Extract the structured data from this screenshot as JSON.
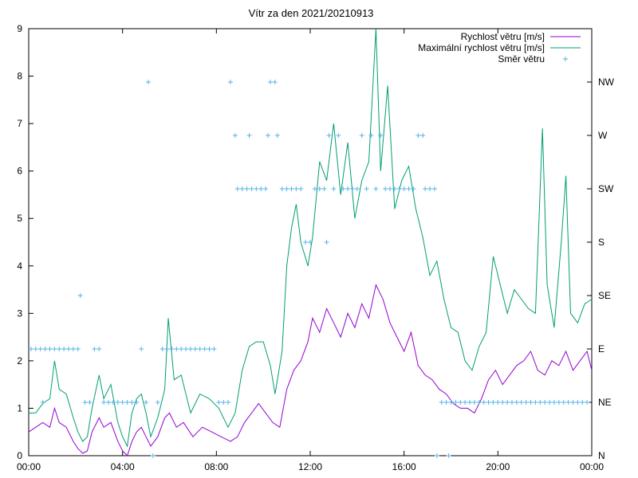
{
  "chart_data": {
    "type": "line",
    "title": "Vítr za den 2021/20210913",
    "xlabel": "",
    "ylabel": "",
    "x_unit": "hours",
    "xlim": [
      0,
      24
    ],
    "ylim": [
      0,
      9
    ],
    "x_ticks": [
      0,
      4,
      8,
      12,
      16,
      20,
      24
    ],
    "x_tick_labels": [
      "00:00",
      "04:00",
      "08:00",
      "12:00",
      "16:00",
      "20:00",
      "00:00"
    ],
    "y_ticks": [
      0,
      1,
      2,
      3,
      4,
      5,
      6,
      7,
      8,
      9
    ],
    "y_tick_labels": [
      "0",
      "1",
      "2",
      "3",
      "4",
      "5",
      "6",
      "7",
      "8",
      "9"
    ],
    "y2_ticks": [
      0,
      1.125,
      2.25,
      3.375,
      4.5,
      5.625,
      6.75,
      7.875
    ],
    "y2_tick_labels": [
      "N",
      "NE",
      "E",
      "SE",
      "S",
      "SW",
      "W",
      "NW"
    ],
    "grid": false,
    "legend_position": "top-right",
    "series": [
      {
        "name": "Rychlost větru [m/s]",
        "color": "#9400d3",
        "style": "line",
        "points": [
          [
            0,
            0.5
          ],
          [
            0.3,
            0.6
          ],
          [
            0.6,
            0.7
          ],
          [
            0.9,
            0.6
          ],
          [
            1.1,
            1.0
          ],
          [
            1.3,
            0.7
          ],
          [
            1.6,
            0.6
          ],
          [
            1.9,
            0.3
          ],
          [
            2.1,
            0.15
          ],
          [
            2.3,
            0.05
          ],
          [
            2.5,
            0.1
          ],
          [
            2.7,
            0.5
          ],
          [
            3.0,
            0.8
          ],
          [
            3.2,
            0.6
          ],
          [
            3.5,
            0.7
          ],
          [
            3.8,
            0.3
          ],
          [
            4.0,
            0.1
          ],
          [
            4.2,
            0.0
          ],
          [
            4.4,
            0.3
          ],
          [
            4.6,
            0.5
          ],
          [
            4.8,
            0.6
          ],
          [
            5.0,
            0.4
          ],
          [
            5.2,
            0.2
          ],
          [
            5.5,
            0.4
          ],
          [
            5.8,
            0.8
          ],
          [
            6.0,
            0.9
          ],
          [
            6.3,
            0.6
          ],
          [
            6.6,
            0.7
          ],
          [
            7.0,
            0.4
          ],
          [
            7.4,
            0.6
          ],
          [
            7.8,
            0.5
          ],
          [
            8.2,
            0.4
          ],
          [
            8.6,
            0.3
          ],
          [
            8.9,
            0.4
          ],
          [
            9.2,
            0.7
          ],
          [
            9.5,
            0.9
          ],
          [
            9.8,
            1.1
          ],
          [
            10.1,
            0.9
          ],
          [
            10.4,
            0.7
          ],
          [
            10.7,
            0.6
          ],
          [
            11.0,
            1.4
          ],
          [
            11.3,
            1.8
          ],
          [
            11.6,
            2.0
          ],
          [
            11.9,
            2.4
          ],
          [
            12.1,
            2.9
          ],
          [
            12.4,
            2.6
          ],
          [
            12.7,
            3.1
          ],
          [
            13.0,
            2.8
          ],
          [
            13.3,
            2.5
          ],
          [
            13.6,
            3.0
          ],
          [
            13.9,
            2.7
          ],
          [
            14.2,
            3.2
          ],
          [
            14.5,
            2.9
          ],
          [
            14.8,
            3.6
          ],
          [
            15.1,
            3.3
          ],
          [
            15.4,
            2.8
          ],
          [
            15.7,
            2.5
          ],
          [
            16.0,
            2.2
          ],
          [
            16.3,
            2.6
          ],
          [
            16.6,
            1.9
          ],
          [
            16.9,
            1.7
          ],
          [
            17.2,
            1.6
          ],
          [
            17.5,
            1.4
          ],
          [
            17.8,
            1.3
          ],
          [
            18.1,
            1.1
          ],
          [
            18.4,
            1.0
          ],
          [
            18.7,
            1.0
          ],
          [
            19.0,
            0.9
          ],
          [
            19.3,
            1.2
          ],
          [
            19.6,
            1.6
          ],
          [
            19.9,
            1.8
          ],
          [
            20.2,
            1.5
          ],
          [
            20.5,
            1.7
          ],
          [
            20.8,
            1.9
          ],
          [
            21.1,
            2.0
          ],
          [
            21.4,
            2.2
          ],
          [
            21.7,
            1.8
          ],
          [
            22.0,
            1.7
          ],
          [
            22.3,
            2.0
          ],
          [
            22.6,
            1.9
          ],
          [
            22.9,
            2.2
          ],
          [
            23.2,
            1.8
          ],
          [
            23.5,
            2.0
          ],
          [
            23.8,
            2.2
          ],
          [
            24.0,
            1.8
          ]
        ]
      },
      {
        "name": "Maximální rychlost větru [m/s]",
        "color": "#009e73",
        "style": "line",
        "points": [
          [
            0,
            0.9
          ],
          [
            0.3,
            0.9
          ],
          [
            0.6,
            1.1
          ],
          [
            0.9,
            1.2
          ],
          [
            1.1,
            2.0
          ],
          [
            1.3,
            1.4
          ],
          [
            1.6,
            1.3
          ],
          [
            1.9,
            0.8
          ],
          [
            2.1,
            0.5
          ],
          [
            2.3,
            0.3
          ],
          [
            2.5,
            0.4
          ],
          [
            2.7,
            1.0
          ],
          [
            3.0,
            1.7
          ],
          [
            3.2,
            1.2
          ],
          [
            3.5,
            1.5
          ],
          [
            3.8,
            0.7
          ],
          [
            4.0,
            0.4
          ],
          [
            4.2,
            0.2
          ],
          [
            4.4,
            0.9
          ],
          [
            4.6,
            1.2
          ],
          [
            4.8,
            1.3
          ],
          [
            5.0,
            0.9
          ],
          [
            5.2,
            0.4
          ],
          [
            5.5,
            0.8
          ],
          [
            5.8,
            1.4
          ],
          [
            5.95,
            2.9
          ],
          [
            6.2,
            1.6
          ],
          [
            6.5,
            1.7
          ],
          [
            6.9,
            0.9
          ],
          [
            7.3,
            1.3
          ],
          [
            7.7,
            1.2
          ],
          [
            8.1,
            1.0
          ],
          [
            8.5,
            0.6
          ],
          [
            8.8,
            0.9
          ],
          [
            9.1,
            1.8
          ],
          [
            9.4,
            2.3
          ],
          [
            9.7,
            2.4
          ],
          [
            10.0,
            2.4
          ],
          [
            10.3,
            1.9
          ],
          [
            10.5,
            1.3
          ],
          [
            10.8,
            2.2
          ],
          [
            11.0,
            4.0
          ],
          [
            11.2,
            4.8
          ],
          [
            11.4,
            5.3
          ],
          [
            11.6,
            4.5
          ],
          [
            11.9,
            4.0
          ],
          [
            12.1,
            4.6
          ],
          [
            12.4,
            6.2
          ],
          [
            12.7,
            5.8
          ],
          [
            13.0,
            7.0
          ],
          [
            13.3,
            5.5
          ],
          [
            13.6,
            6.6
          ],
          [
            13.9,
            5.0
          ],
          [
            14.2,
            5.8
          ],
          [
            14.5,
            6.2
          ],
          [
            14.8,
            9.0
          ],
          [
            15.0,
            6.0
          ],
          [
            15.3,
            7.8
          ],
          [
            15.6,
            5.2
          ],
          [
            15.9,
            5.8
          ],
          [
            16.2,
            6.1
          ],
          [
            16.5,
            5.2
          ],
          [
            16.8,
            4.6
          ],
          [
            17.1,
            3.8
          ],
          [
            17.4,
            4.1
          ],
          [
            17.7,
            3.3
          ],
          [
            18.0,
            2.7
          ],
          [
            18.3,
            2.6
          ],
          [
            18.6,
            2.0
          ],
          [
            18.9,
            1.8
          ],
          [
            19.2,
            2.3
          ],
          [
            19.5,
            2.6
          ],
          [
            19.8,
            4.2
          ],
          [
            20.1,
            3.6
          ],
          [
            20.4,
            3.0
          ],
          [
            20.7,
            3.5
          ],
          [
            21.0,
            3.3
          ],
          [
            21.3,
            3.1
          ],
          [
            21.6,
            3.0
          ],
          [
            21.9,
            6.9
          ],
          [
            22.1,
            3.6
          ],
          [
            22.4,
            2.7
          ],
          [
            22.7,
            4.5
          ],
          [
            22.9,
            5.9
          ],
          [
            23.1,
            3.0
          ],
          [
            23.4,
            2.8
          ],
          [
            23.7,
            3.2
          ],
          [
            24.0,
            3.3
          ]
        ]
      },
      {
        "name": "Směr větru",
        "color": "#56b4e9",
        "style": "points",
        "points": [
          [
            0.1,
            2.25
          ],
          [
            0.3,
            2.25
          ],
          [
            0.5,
            2.25
          ],
          [
            0.6,
            1.125
          ],
          [
            0.7,
            2.25
          ],
          [
            0.9,
            2.25
          ],
          [
            1.1,
            2.25
          ],
          [
            1.3,
            2.25
          ],
          [
            1.5,
            2.25
          ],
          [
            1.7,
            2.25
          ],
          [
            1.9,
            2.25
          ],
          [
            2.1,
            2.25
          ],
          [
            2.2,
            3.375
          ],
          [
            2.4,
            1.125
          ],
          [
            2.6,
            1.125
          ],
          [
            2.8,
            2.25
          ],
          [
            3.0,
            2.25
          ],
          [
            3.2,
            1.125
          ],
          [
            3.4,
            1.125
          ],
          [
            3.6,
            1.125
          ],
          [
            3.8,
            1.125
          ],
          [
            4.0,
            1.125
          ],
          [
            4.2,
            1.125
          ],
          [
            4.4,
            1.125
          ],
          [
            4.6,
            1.125
          ],
          [
            4.8,
            2.25
          ],
          [
            5.0,
            1.125
          ],
          [
            5.1,
            7.875
          ],
          [
            5.3,
            0.0
          ],
          [
            5.5,
            1.125
          ],
          [
            5.7,
            2.25
          ],
          [
            5.9,
            2.25
          ],
          [
            6.1,
            2.25
          ],
          [
            6.3,
            2.25
          ],
          [
            6.5,
            2.25
          ],
          [
            6.7,
            2.25
          ],
          [
            6.9,
            2.25
          ],
          [
            7.1,
            2.25
          ],
          [
            7.3,
            2.25
          ],
          [
            7.5,
            2.25
          ],
          [
            7.7,
            2.25
          ],
          [
            7.9,
            2.25
          ],
          [
            8.1,
            1.125
          ],
          [
            8.3,
            1.125
          ],
          [
            8.5,
            1.125
          ],
          [
            8.6,
            7.875
          ],
          [
            8.8,
            6.75
          ],
          [
            8.9,
            5.625
          ],
          [
            9.1,
            5.625
          ],
          [
            9.3,
            5.625
          ],
          [
            9.4,
            6.75
          ],
          [
            9.5,
            5.625
          ],
          [
            9.7,
            5.625
          ],
          [
            9.9,
            5.625
          ],
          [
            10.1,
            5.625
          ],
          [
            10.2,
            6.75
          ],
          [
            10.3,
            7.875
          ],
          [
            10.5,
            7.875
          ],
          [
            10.6,
            6.75
          ],
          [
            10.8,
            5.625
          ],
          [
            11.0,
            5.625
          ],
          [
            11.2,
            5.625
          ],
          [
            11.4,
            5.625
          ],
          [
            11.6,
            5.625
          ],
          [
            11.8,
            4.5
          ],
          [
            12.0,
            4.5
          ],
          [
            12.2,
            5.625
          ],
          [
            12.4,
            5.625
          ],
          [
            12.6,
            5.625
          ],
          [
            12.7,
            4.5
          ],
          [
            12.8,
            6.75
          ],
          [
            13.0,
            5.625
          ],
          [
            13.2,
            6.75
          ],
          [
            13.4,
            5.625
          ],
          [
            13.6,
            5.625
          ],
          [
            13.8,
            5.625
          ],
          [
            14.0,
            5.625
          ],
          [
            14.2,
            6.75
          ],
          [
            14.4,
            5.625
          ],
          [
            14.6,
            6.75
          ],
          [
            14.8,
            5.625
          ],
          [
            15.0,
            6.75
          ],
          [
            15.2,
            5.625
          ],
          [
            15.4,
            5.625
          ],
          [
            15.6,
            5.625
          ],
          [
            15.8,
            5.625
          ],
          [
            16.0,
            5.625
          ],
          [
            16.2,
            5.625
          ],
          [
            16.4,
            5.625
          ],
          [
            16.6,
            6.75
          ],
          [
            16.8,
            6.75
          ],
          [
            16.9,
            5.625
          ],
          [
            17.1,
            5.625
          ],
          [
            17.3,
            5.625
          ],
          [
            17.4,
            0.0
          ],
          [
            17.6,
            1.125
          ],
          [
            17.8,
            1.125
          ],
          [
            17.9,
            0.0
          ],
          [
            18.0,
            1.125
          ],
          [
            18.2,
            1.125
          ],
          [
            18.4,
            1.125
          ],
          [
            18.6,
            1.125
          ],
          [
            18.8,
            1.125
          ],
          [
            19.0,
            1.125
          ],
          [
            19.2,
            1.125
          ],
          [
            19.4,
            1.125
          ],
          [
            19.6,
            1.125
          ],
          [
            19.8,
            1.125
          ],
          [
            20.0,
            1.125
          ],
          [
            20.2,
            1.125
          ],
          [
            20.4,
            1.125
          ],
          [
            20.6,
            1.125
          ],
          [
            20.8,
            1.125
          ],
          [
            21.0,
            1.125
          ],
          [
            21.2,
            1.125
          ],
          [
            21.4,
            1.125
          ],
          [
            21.6,
            1.125
          ],
          [
            21.8,
            1.125
          ],
          [
            22.0,
            1.125
          ],
          [
            22.2,
            1.125
          ],
          [
            22.4,
            1.125
          ],
          [
            22.6,
            1.125
          ],
          [
            22.8,
            1.125
          ],
          [
            23.0,
            1.125
          ],
          [
            23.2,
            1.125
          ],
          [
            23.4,
            1.125
          ],
          [
            23.6,
            1.125
          ],
          [
            23.8,
            1.125
          ]
        ]
      }
    ]
  }
}
